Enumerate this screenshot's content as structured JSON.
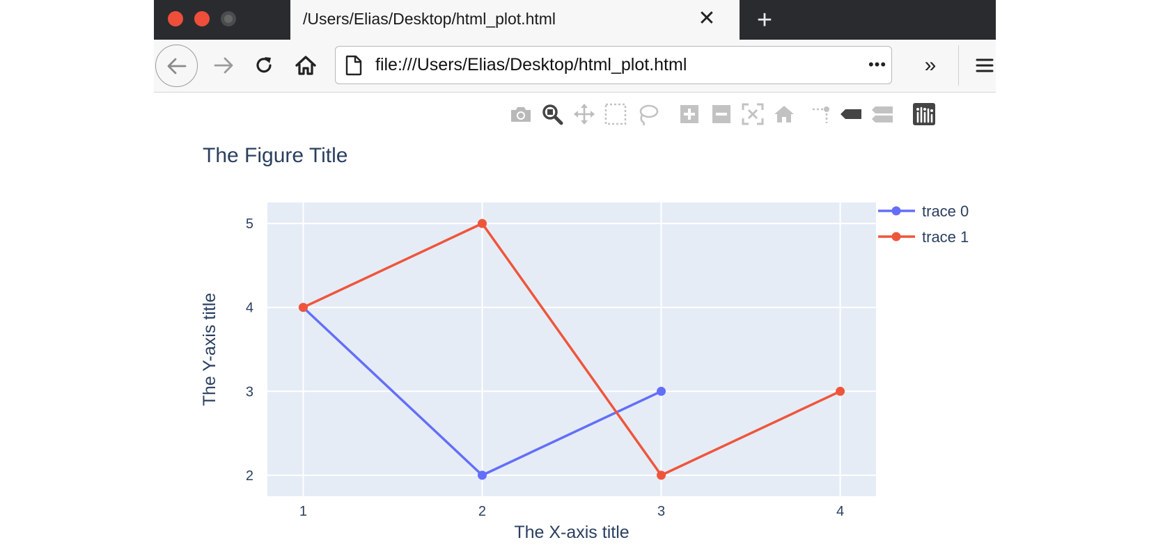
{
  "browser": {
    "tab_title": "/Users/Elias/Desktop/html_plot.html",
    "tab_close_glyph": "✕",
    "new_tab_glyph": "+",
    "url": "file:///Users/Elias/Desktop/html_plot.html",
    "page_actions_glyph": "•••",
    "overflow_glyph": "»",
    "traffic_light_colors": {
      "close": "#ef4e3a",
      "minimize": "#ef4e3a",
      "maximize": "#4b4c4f"
    },
    "icons": [
      "back-arrow-icon",
      "forward-arrow-icon",
      "reload-icon",
      "home-icon",
      "page-icon",
      "hamburger-menu-icon"
    ]
  },
  "modebar": {
    "icons": [
      "camera-icon",
      "zoom-icon",
      "pan-icon",
      "box-select-icon",
      "lasso-select-icon",
      "zoom-in-icon",
      "zoom-out-icon",
      "autoscale-icon",
      "reset-axes-icon",
      "spike-lines-icon",
      "hover-closest-icon",
      "hover-compare-icon",
      "plotly-logo-icon"
    ]
  },
  "chart_data": {
    "type": "line",
    "title": "The Figure Title",
    "xlabel": "The X-axis title",
    "ylabel": "The Y-axis title",
    "xlim": [
      0.8,
      4.2
    ],
    "ylim": [
      1.75,
      5.25
    ],
    "xticks": [
      1,
      2,
      3,
      4
    ],
    "yticks": [
      2,
      3,
      4,
      5
    ],
    "grid": true,
    "legend_position": "top-right",
    "plot_bgcolor": "#e5ecf6",
    "series": [
      {
        "name": "trace 0",
        "color": "#636efa",
        "x": [
          1,
          2,
          3
        ],
        "y": [
          4,
          2,
          3
        ]
      },
      {
        "name": "trace 1",
        "color": "#ef553b",
        "x": [
          1,
          2,
          3,
          4
        ],
        "y": [
          4,
          5,
          2,
          3
        ]
      }
    ]
  }
}
